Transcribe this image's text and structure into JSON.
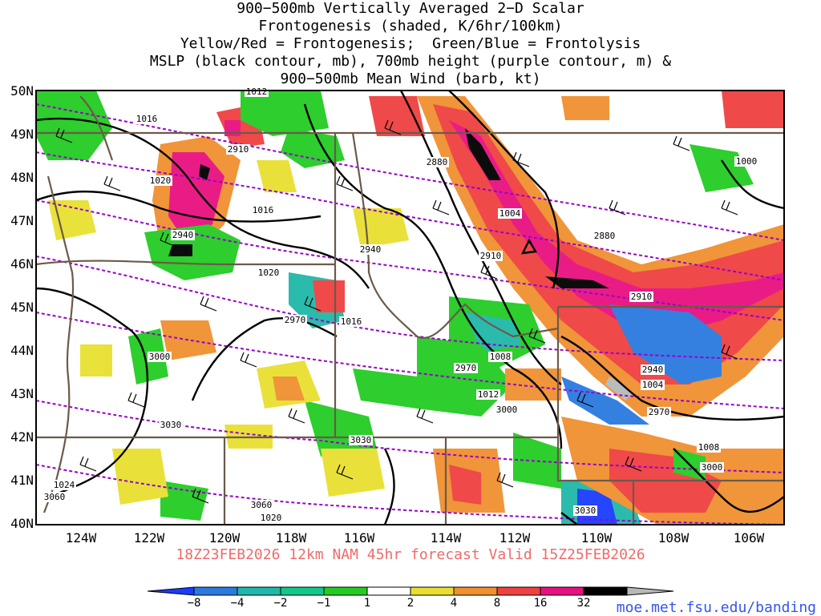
{
  "title": {
    "lines": [
      "900−500mb Vertically Averaged 2−D Scalar",
      "Frontogenesis (shaded, K/6hr/100km)",
      "Yellow/Red = Frontogenesis;  Green/Blue = Frontolysis",
      "MSLP (black contour, mb), 700mb height (purple contour, m) &",
      "900−500mb Mean Wind (barb, kt)"
    ]
  },
  "lat_labels": [
    "50N",
    "49N",
    "48N",
    "47N",
    "46N",
    "45N",
    "44N",
    "43N",
    "42N",
    "41N",
    "40N"
  ],
  "lon_labels": [
    "124W",
    "122W",
    "120W",
    "118W",
    "116W",
    "114W",
    "112W",
    "110W",
    "108W",
    "106W"
  ],
  "valid_line": "18Z23FEB2026 12km NAM 45hr forecast Valid 15Z25FEB2026",
  "colorbar": {
    "labels": [
      "−8",
      "−4",
      "−2",
      "−1",
      "1",
      "2",
      "4",
      "8",
      "16",
      "32"
    ],
    "colors": [
      "#1a3cff",
      "#2a7ae0",
      "#20b8a8",
      "#11c88a",
      "#22cc22",
      "#ffffff",
      "#e8e030",
      "#f09030",
      "#f04040",
      "#e81080",
      "#000000",
      "#b8b8b8"
    ]
  },
  "website": "moe.met.fsu.edu/banding",
  "contour_labels": {
    "mslp": [
      "1012",
      "1016",
      "1020",
      "1016",
      "1020",
      "1016",
      "1004",
      "1008",
      "1012",
      "1004",
      "1008",
      "1000",
      "1024",
      "1020"
    ],
    "height": [
      "2910",
      "2880",
      "2940",
      "2940",
      "2910",
      "2880",
      "2970",
      "2910",
      "2970",
      "2940",
      "2970",
      "3000",
      "3000",
      "3030",
      "3030",
      "3060",
      "3060",
      "3000",
      "3030"
    ]
  },
  "colors": {
    "map_border": "#000000",
    "state_borders": "#6b5a4a",
    "mslp": "#000000",
    "height": "#9900cc"
  }
}
